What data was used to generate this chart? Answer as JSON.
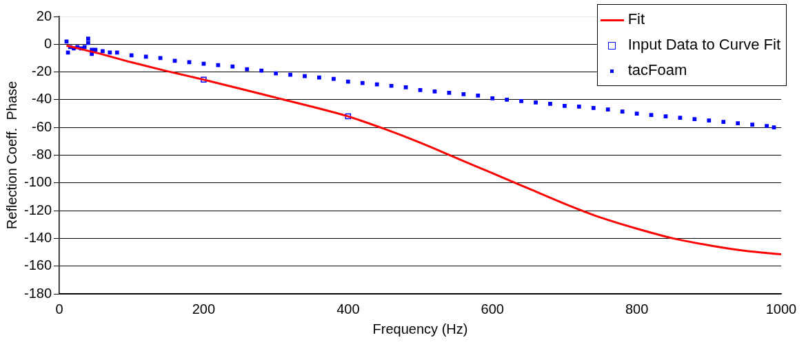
{
  "chart_data": {
    "type": "line",
    "xlabel": "Frequency (Hz)",
    "ylabel": "Reflection Coeff.  Phase",
    "xlim": [
      0,
      1000
    ],
    "xticks": [
      0,
      200,
      400,
      600,
      800,
      1000
    ],
    "ylim": [
      -180,
      20
    ],
    "yticks": [
      -180,
      -160,
      -140,
      -120,
      -100,
      -80,
      -60,
      -40,
      -20,
      0,
      20
    ],
    "grid": "y",
    "legend": "top right",
    "series": [
      {
        "name": "Fit",
        "color": "#ff0000",
        "marker": "none",
        "x": [
          10,
          50,
          100,
          150,
          200,
          250,
          300,
          350,
          400,
          450,
          500,
          550,
          600,
          650,
          700,
          750,
          800,
          850,
          900,
          950,
          1000
        ],
        "values": [
          -1,
          -6,
          -13,
          -19.5,
          -25.5,
          -32,
          -38.5,
          -45,
          -52,
          -61,
          -71,
          -82,
          -93,
          -104,
          -115,
          -125,
          -133,
          -140,
          -145,
          -149,
          -151.5
        ]
      },
      {
        "name": "Input Data to Curve Fit",
        "type": "scatter",
        "color": "#0000ff",
        "marker": "square",
        "x": [
          200,
          400
        ],
        "values": [
          -25.5,
          -52
        ]
      },
      {
        "name": "tacFoam",
        "type": "scatter",
        "color": "#0000ff",
        "x": [
          10,
          12,
          15,
          20,
          25,
          30,
          35,
          40,
          40,
          45,
          45,
          50,
          60,
          70,
          80,
          100,
          120,
          140,
          160,
          180,
          200,
          220,
          240,
          260,
          280,
          300,
          320,
          340,
          360,
          380,
          400,
          420,
          440,
          460,
          480,
          500,
          520,
          540,
          560,
          580,
          600,
          620,
          640,
          660,
          680,
          700,
          720,
          740,
          760,
          780,
          800,
          820,
          840,
          860,
          880,
          900,
          920,
          940,
          960,
          980,
          990
        ],
        "values": [
          2,
          -6,
          -2,
          -3,
          -2,
          -3,
          -2,
          4,
          1,
          -7,
          -4,
          -4,
          -5,
          -6,
          -6,
          -8,
          -9,
          -10,
          -12,
          -13,
          -14,
          -15,
          -16,
          -18,
          -19,
          -21,
          -22,
          -23,
          -24,
          -25,
          -27,
          -28,
          -29,
          -30,
          -31,
          -33,
          -34,
          -35,
          -36,
          -37,
          -39,
          -40,
          -41,
          -42,
          -43,
          -44.5,
          -45,
          -46,
          -47,
          -48.5,
          -50,
          -51,
          -52,
          -53,
          -54,
          -55,
          -56,
          -57,
          -58,
          -59,
          -60
        ]
      }
    ]
  }
}
